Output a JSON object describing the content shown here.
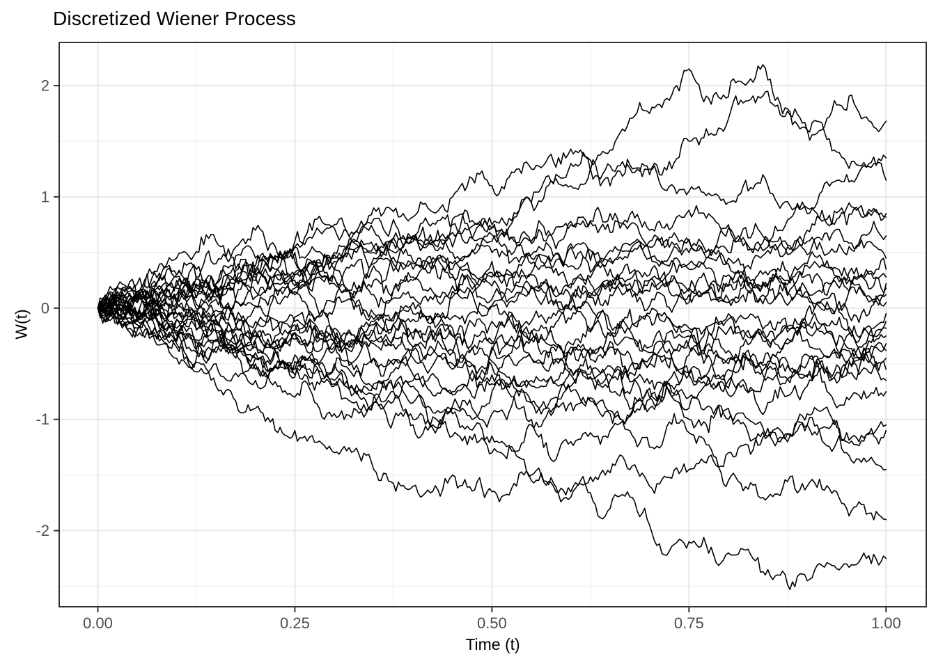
{
  "chart_data": {
    "type": "line",
    "title": "Discretized Wiener Process",
    "xlabel": "Time (t)",
    "ylabel": "W(t)",
    "xlim": [
      -0.049,
      1.051
    ],
    "ylim": [
      -2.684,
      2.388
    ],
    "x_ticks": {
      "values": [
        0,
        0.25,
        0.5,
        0.75,
        1
      ],
      "labels": [
        "0.00",
        "0.25",
        "0.50",
        "0.75",
        "1.00"
      ]
    },
    "y_ticks": {
      "values": [
        -2,
        -1,
        0,
        1,
        2
      ],
      "labels": [
        "-2",
        "-1",
        "0",
        "1",
        "2"
      ]
    },
    "x_minor": [
      0.125,
      0.375,
      0.625,
      0.875
    ],
    "y_minor": [
      -2.5,
      -1.5,
      -0.5,
      0.5,
      1.5
    ],
    "grid": true,
    "legend": "none",
    "n_paths": 28,
    "t_step": 0.05,
    "path_color": "#000000",
    "paths": [
      {
        "name": "path-1",
        "seed": 108,
        "w": [
          0,
          0.12,
          0.3,
          0.22,
          0.45,
          0.55,
          0.5,
          0.7,
          0.62,
          0.68,
          0.72,
          0.95,
          1.3,
          1.42,
          1.75,
          2.15,
          1.9,
          2.05,
          1.6,
          1.78,
          1.68
        ]
      },
      {
        "name": "path-2",
        "seed": 115,
        "w": [
          0,
          -0.1,
          0.05,
          0.2,
          0.1,
          0.32,
          0.28,
          0.45,
          0.6,
          0.5,
          0.66,
          0.58,
          0.75,
          0.68,
          0.55,
          0.62,
          0.5,
          0.6,
          0.85,
          1.2,
          1.35
        ]
      },
      {
        "name": "path-3",
        "seed": 122,
        "w": [
          0,
          0.08,
          -0.05,
          0.15,
          0.3,
          0.25,
          0.48,
          0.4,
          0.62,
          0.8,
          0.75,
          0.95,
          1.1,
          1.28,
          1.2,
          1.5,
          1.7,
          1.95,
          1.6,
          1.3,
          1.15
        ]
      },
      {
        "name": "path-4",
        "seed": 129,
        "w": [
          0,
          0.15,
          0.28,
          0.4,
          0.32,
          0.55,
          0.75,
          0.9,
          0.82,
          1.0,
          1.1,
          1.25,
          1.43,
          1.1,
          1.25,
          1.05,
          0.95,
          1.1,
          0.9,
          0.75,
          0.85
        ]
      },
      {
        "name": "path-5",
        "seed": 136,
        "w": [
          0,
          -0.05,
          0.12,
          0.08,
          0.25,
          0.42,
          0.35,
          0.5,
          0.65,
          0.55,
          0.72,
          0.6,
          0.78,
          0.85,
          0.7,
          0.88,
          0.75,
          0.62,
          0.7,
          0.9,
          0.82
        ]
      },
      {
        "name": "path-6",
        "seed": 143,
        "w": [
          0,
          0.1,
          0.02,
          0.2,
          0.15,
          0.3,
          0.22,
          0.12,
          0.28,
          0.4,
          0.32,
          0.45,
          0.38,
          0.52,
          0.45,
          0.6,
          0.72,
          0.55,
          0.48,
          0.6,
          0.65
        ]
      },
      {
        "name": "path-7",
        "seed": 150,
        "w": [
          0,
          0.22,
          0.45,
          0.6,
          0.7,
          0.5,
          0.42,
          0.55,
          0.35,
          0.28,
          0.42,
          0.3,
          0.18,
          0.35,
          0.25,
          0.4,
          0.3,
          0.2,
          0.38,
          0.3,
          0.35
        ]
      },
      {
        "name": "path-8",
        "seed": 157,
        "w": [
          0,
          0.05,
          0.25,
          0.18,
          0.35,
          0.6,
          0.72,
          0.8,
          0.65,
          0.75,
          0.6,
          0.48,
          0.58,
          0.42,
          0.5,
          0.35,
          0.45,
          0.3,
          0.4,
          0.22,
          0.28
        ]
      },
      {
        "name": "path-9",
        "seed": 164,
        "w": [
          0,
          -0.12,
          -0.3,
          -0.2,
          -0.35,
          -0.22,
          -0.3,
          -0.15,
          -0.05,
          0.1,
          0.02,
          0.18,
          0.1,
          0.25,
          0.15,
          0.05,
          0.2,
          0.12,
          0.3,
          0.18,
          0.22
        ]
      },
      {
        "name": "path-10",
        "seed": 171,
        "w": [
          0,
          0.08,
          0.18,
          0.1,
          0.28,
          0.2,
          0.35,
          0.25,
          0.4,
          0.3,
          0.2,
          0.32,
          0.22,
          0.12,
          0.25,
          0.18,
          0.08,
          0.22,
          0.15,
          0.25,
          0.18
        ]
      },
      {
        "name": "path-11",
        "seed": 178,
        "w": [
          0,
          -0.08,
          0.05,
          -0.12,
          0.02,
          0.15,
          0.05,
          -0.05,
          0.1,
          0.2,
          0.08,
          0.18,
          0.05,
          0.15,
          0.02,
          0.12,
          0.2,
          0.05,
          0.15,
          0.08,
          0.12
        ]
      },
      {
        "name": "path-12",
        "seed": 185,
        "w": [
          0,
          0.12,
          0.05,
          0.22,
          0.3,
          0.18,
          0.28,
          0.38,
          0.25,
          0.15,
          0.28,
          0.2,
          0.1,
          0.2,
          0.3,
          0.15,
          0.05,
          0.18,
          0.1,
          0.0,
          0.05
        ]
      },
      {
        "name": "path-13",
        "seed": 192,
        "w": [
          0,
          -0.05,
          -0.18,
          -0.1,
          -0.25,
          -0.15,
          -0.3,
          -0.2,
          -0.35,
          -0.25,
          -0.12,
          -0.22,
          -0.1,
          -0.2,
          -0.08,
          -0.18,
          -0.05,
          -0.15,
          -0.02,
          -0.1,
          -0.05
        ]
      },
      {
        "name": "path-14",
        "seed": 199,
        "w": [
          0,
          0.1,
          0.2,
          0.12,
          0.02,
          0.12,
          0.0,
          -0.1,
          0.05,
          -0.08,
          0.02,
          -0.12,
          -0.02,
          -0.15,
          -0.05,
          -0.2,
          -0.1,
          -0.25,
          -0.15,
          -0.2,
          -0.12
        ]
      },
      {
        "name": "path-15",
        "seed": 206,
        "w": [
          0,
          -0.15,
          -0.08,
          -0.22,
          -0.12,
          -0.28,
          -0.18,
          -0.32,
          -0.22,
          -0.4,
          -0.3,
          -0.45,
          -0.32,
          -0.22,
          -0.35,
          -0.25,
          -0.38,
          -0.28,
          -0.15,
          -0.25,
          -0.18
        ]
      },
      {
        "name": "path-16",
        "seed": 213,
        "w": [
          0,
          0.05,
          -0.1,
          -0.02,
          -0.18,
          -0.08,
          -0.22,
          -0.12,
          -0.28,
          -0.18,
          -0.32,
          -0.2,
          -0.35,
          -0.25,
          -0.4,
          -0.3,
          -0.2,
          -0.32,
          -0.22,
          -0.35,
          -0.25
        ]
      },
      {
        "name": "path-17",
        "seed": 220,
        "w": [
          0,
          -0.1,
          -0.22,
          -0.35,
          -0.25,
          -0.42,
          -0.3,
          -0.45,
          -0.35,
          -0.5,
          -0.38,
          -0.28,
          -0.42,
          -0.3,
          -0.45,
          -0.35,
          -0.5,
          -0.4,
          -0.28,
          -0.38,
          -0.32
        ]
      },
      {
        "name": "path-18",
        "seed": 227,
        "w": [
          0,
          -0.08,
          -0.2,
          -0.3,
          -0.45,
          -0.55,
          -0.68,
          -0.8,
          -0.65,
          -0.75,
          -0.6,
          -0.7,
          -0.55,
          -0.65,
          -0.5,
          -0.6,
          -0.45,
          -0.55,
          -0.42,
          -0.5,
          -0.38
        ]
      },
      {
        "name": "path-19",
        "seed": 234,
        "w": [
          0,
          -0.18,
          -0.35,
          -0.28,
          -0.5,
          -0.62,
          -0.55,
          -0.72,
          -0.85,
          -0.9,
          -0.75,
          -0.85,
          -0.7,
          -0.6,
          -0.72,
          -0.58,
          -0.65,
          -0.52,
          -0.6,
          -0.48,
          -0.45
        ]
      },
      {
        "name": "path-20",
        "seed": 241,
        "w": [
          0,
          0.08,
          -0.05,
          -0.15,
          -0.3,
          -0.22,
          -0.38,
          -0.3,
          -0.45,
          -0.38,
          -0.52,
          -0.45,
          -0.6,
          -0.52,
          -0.68,
          -0.6,
          -0.72,
          -0.62,
          -0.5,
          -0.6,
          -0.55
        ]
      },
      {
        "name": "path-21",
        "seed": 248,
        "w": [
          0,
          -0.12,
          -0.25,
          -0.4,
          -0.55,
          -0.48,
          -0.65,
          -0.78,
          -0.7,
          -0.88,
          -0.95,
          -1.0,
          -0.85,
          -0.95,
          -0.8,
          -0.9,
          -0.78,
          -0.85,
          -0.7,
          -0.8,
          -0.75
        ]
      },
      {
        "name": "path-22",
        "seed": 255,
        "w": [
          0,
          -0.2,
          -0.1,
          -0.3,
          -0.45,
          -0.6,
          -0.5,
          -0.68,
          -0.6,
          -0.78,
          -0.68,
          -0.85,
          -0.75,
          -0.92,
          -0.82,
          -1.0,
          -0.9,
          -1.08,
          -0.95,
          -1.12,
          -1.05
        ]
      },
      {
        "name": "path-23",
        "seed": 262,
        "w": [
          0,
          -0.15,
          -0.32,
          -0.5,
          -0.65,
          -0.8,
          -0.95,
          -0.85,
          -1.05,
          -0.95,
          -1.15,
          -1.05,
          -1.2,
          -1.1,
          -1.25,
          -1.12,
          -1.3,
          -1.15,
          -1.05,
          -1.2,
          -1.1
        ]
      },
      {
        "name": "path-24",
        "seed": 269,
        "w": [
          0,
          0.1,
          0.0,
          -0.15,
          -0.28,
          -0.2,
          -0.35,
          -0.45,
          -0.38,
          -0.55,
          -0.48,
          -0.65,
          -0.55,
          -0.75,
          -0.9,
          -0.8,
          -1.0,
          -1.15,
          -1.05,
          -1.3,
          -1.45
        ]
      },
      {
        "name": "path-25",
        "seed": 276,
        "w": [
          0,
          -0.25,
          -0.45,
          -0.7,
          -0.9,
          -1.1,
          -1.3,
          -1.45,
          -1.6,
          -1.5,
          -1.65,
          -1.55,
          -1.7,
          -1.48,
          -1.6,
          -1.45,
          -1.55,
          -1.7,
          -1.6,
          -1.8,
          -1.9
        ]
      },
      {
        "name": "path-26",
        "seed": 283,
        "w": [
          0,
          -0.1,
          -0.28,
          -0.2,
          -0.4,
          -0.55,
          -0.7,
          -0.85,
          -1.0,
          -1.15,
          -1.3,
          -1.5,
          -1.65,
          -1.8,
          -1.95,
          -2.1,
          -2.2,
          -2.35,
          -2.45,
          -2.3,
          -2.25
        ]
      },
      {
        "name": "path-27",
        "seed": 290,
        "w": [
          0,
          0.15,
          0.3,
          0.2,
          0.38,
          0.3,
          0.45,
          0.55,
          0.42,
          0.35,
          0.5,
          0.4,
          0.55,
          0.45,
          0.6,
          0.5,
          0.4,
          0.52,
          0.6,
          0.48,
          0.45
        ]
      },
      {
        "name": "path-28",
        "seed": 297,
        "w": [
          0,
          -0.05,
          0.08,
          -0.08,
          -0.2,
          -0.12,
          -0.28,
          -0.2,
          -0.1,
          -0.25,
          -0.35,
          -0.28,
          -0.42,
          -0.35,
          -0.5,
          -0.42,
          -0.55,
          -0.48,
          -0.62,
          -0.55,
          -0.65
        ]
      }
    ]
  },
  "colors": {
    "background": "#ffffff",
    "panel_border": "#333333",
    "grid_major": "#e7e7e7",
    "grid_minor": "#f1f1f1",
    "tick_mark": "#333333",
    "tick_label": "#4d4d4d",
    "axis_title": "#000000",
    "title": "#000000",
    "path": "#000000"
  }
}
